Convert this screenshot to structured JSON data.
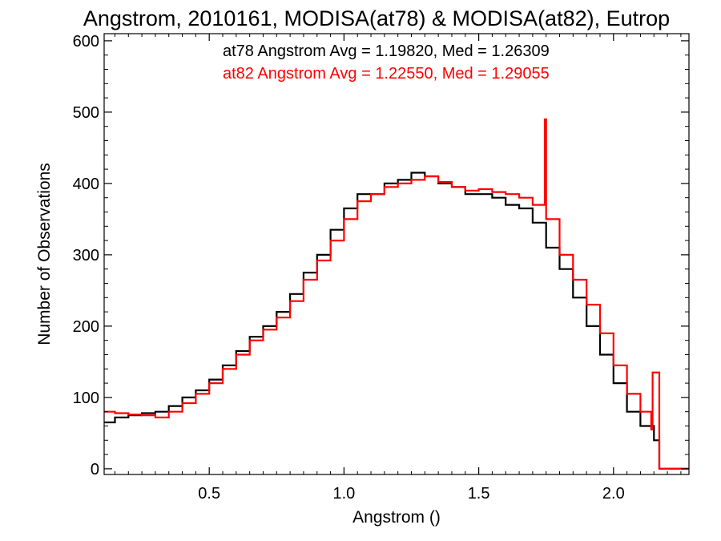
{
  "chart_data": {
    "type": "line",
    "step": true,
    "title": "Angstrom, 2010161, MODISA(at78) & MODISA(at82), Eutrop",
    "xlabel": "Angstrom ()",
    "ylabel": "Number of Observations",
    "xlim": [
      0.11,
      2.28
    ],
    "ylim": [
      -8,
      610
    ],
    "xticks": [
      0.5,
      1.0,
      1.5,
      2.0
    ],
    "xtick_labels": [
      "0.5",
      "1.0",
      "1.5",
      "2.0"
    ],
    "yticks": [
      0,
      100,
      200,
      300,
      400,
      500,
      600
    ],
    "ytick_labels": [
      "0",
      "100",
      "200",
      "300",
      "400",
      "500",
      "600"
    ],
    "annotations": [
      {
        "text": "at78 Angstrom Avg = 1.19820, Med = 1.26309",
        "color": "#000000"
      },
      {
        "text": "at82 Angstrom Avg = 1.22550, Med = 1.29055",
        "color": "#ff0000"
      }
    ],
    "series": [
      {
        "color": "#000000",
        "x": [
          0.11,
          0.15,
          0.2,
          0.25,
          0.3,
          0.35,
          0.4,
          0.45,
          0.5,
          0.55,
          0.6,
          0.65,
          0.7,
          0.75,
          0.8,
          0.85,
          0.9,
          0.95,
          1.0,
          1.05,
          1.1,
          1.15,
          1.2,
          1.25,
          1.3,
          1.35,
          1.4,
          1.45,
          1.5,
          1.55,
          1.6,
          1.65,
          1.7,
          1.75,
          1.8,
          1.85,
          1.9,
          1.95,
          2.0,
          2.05,
          2.1,
          2.15,
          2.17,
          2.28
        ],
        "y": [
          65,
          72,
          75,
          78,
          80,
          88,
          100,
          110,
          125,
          145,
          165,
          185,
          200,
          220,
          245,
          275,
          300,
          335,
          365,
          385,
          385,
          400,
          405,
          415,
          410,
          400,
          395,
          385,
          385,
          380,
          370,
          365,
          345,
          310,
          280,
          240,
          200,
          160,
          120,
          80,
          60,
          40,
          0,
          0
        ]
      },
      {
        "color": "#ff0000",
        "x": [
          0.11,
          0.15,
          0.2,
          0.25,
          0.3,
          0.35,
          0.4,
          0.45,
          0.5,
          0.55,
          0.6,
          0.65,
          0.7,
          0.75,
          0.8,
          0.85,
          0.9,
          0.95,
          1.0,
          1.05,
          1.1,
          1.15,
          1.2,
          1.25,
          1.3,
          1.35,
          1.4,
          1.45,
          1.5,
          1.55,
          1.6,
          1.65,
          1.7,
          1.745,
          1.75,
          1.8,
          1.85,
          1.9,
          1.95,
          2.0,
          2.05,
          2.1,
          2.14,
          2.145,
          2.17,
          2.28
        ],
        "y": [
          80,
          78,
          76,
          75,
          72,
          80,
          92,
          105,
          120,
          140,
          160,
          180,
          195,
          212,
          235,
          265,
          292,
          320,
          350,
          375,
          385,
          395,
          400,
          405,
          410,
          402,
          395,
          390,
          392,
          388,
          385,
          380,
          370,
          490,
          350,
          300,
          265,
          230,
          190,
          145,
          105,
          80,
          55,
          135,
          0,
          0
        ]
      }
    ]
  }
}
